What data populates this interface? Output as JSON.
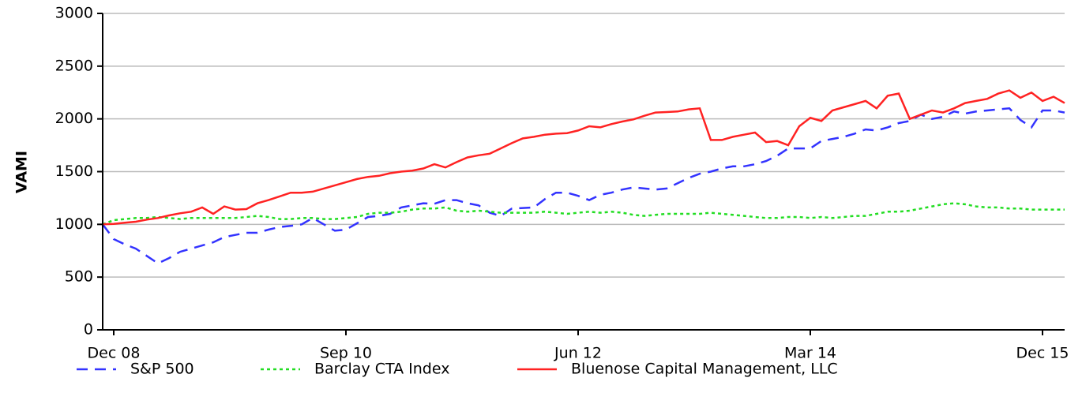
{
  "chart_data": {
    "type": "line",
    "y_label": "VAMI",
    "categories": [
      null,
      "Dec 08",
      null,
      null,
      null,
      null,
      null,
      null,
      null,
      null,
      null,
      null,
      null,
      null,
      null,
      null,
      null,
      null,
      null,
      null,
      null,
      null,
      "Sep 10",
      null,
      null,
      null,
      null,
      null,
      null,
      null,
      null,
      null,
      null,
      null,
      null,
      null,
      null,
      null,
      null,
      null,
      null,
      null,
      null,
      "Jun 12",
      null,
      null,
      null,
      null,
      null,
      null,
      null,
      null,
      null,
      null,
      null,
      null,
      null,
      null,
      null,
      null,
      null,
      null,
      null,
      null,
      "Mar 14",
      null,
      null,
      null,
      null,
      null,
      null,
      null,
      null,
      null,
      null,
      null,
      null,
      null,
      null,
      null,
      null,
      null,
      null,
      null,
      null,
      "Dec 15",
      null,
      null
    ],
    "ylim": [
      0,
      3000
    ],
    "yticks": [
      0,
      500,
      1000,
      1500,
      2000,
      2500,
      3000
    ],
    "grid": true,
    "legend": "bottom",
    "series": [
      {
        "name": "S&P 500",
        "color": "#3333ff",
        "dash": "dashed",
        "values": [
          1000,
          860,
          810,
          770,
          700,
          630,
          680,
          740,
          770,
          800,
          830,
          880,
          900,
          920,
          920,
          950,
          975,
          985,
          1000,
          1060,
          1000,
          940,
          950,
          1010,
          1070,
          1080,
          1100,
          1160,
          1180,
          1200,
          1195,
          1230,
          1230,
          1200,
          1180,
          1110,
          1080,
          1150,
          1155,
          1160,
          1240,
          1300,
          1300,
          1270,
          1230,
          1280,
          1300,
          1330,
          1350,
          1340,
          1330,
          1340,
          1390,
          1440,
          1480,
          1500,
          1530,
          1550,
          1550,
          1570,
          1600,
          1650,
          1720,
          1720,
          1720,
          1790,
          1810,
          1830,
          1860,
          1900,
          1890,
          1920,
          1960,
          1980,
          2040,
          2000,
          2020,
          2070,
          2050,
          2070,
          2080,
          2090,
          2100,
          1990,
          1920,
          2080,
          2080,
          2060
        ]
      },
      {
        "name": "Barclay CTA Index",
        "color": "#22dd22",
        "dash": "dotted",
        "values": [
          1000,
          1040,
          1050,
          1060,
          1060,
          1070,
          1060,
          1050,
          1060,
          1060,
          1060,
          1060,
          1060,
          1070,
          1080,
          1070,
          1050,
          1050,
          1060,
          1060,
          1050,
          1050,
          1060,
          1070,
          1100,
          1110,
          1110,
          1120,
          1140,
          1150,
          1150,
          1160,
          1130,
          1120,
          1130,
          1120,
          1110,
          1110,
          1110,
          1110,
          1120,
          1110,
          1100,
          1110,
          1120,
          1110,
          1120,
          1110,
          1090,
          1080,
          1090,
          1100,
          1100,
          1100,
          1100,
          1110,
          1100,
          1090,
          1080,
          1070,
          1060,
          1060,
          1070,
          1070,
          1060,
          1070,
          1060,
          1070,
          1080,
          1080,
          1100,
          1120,
          1120,
          1130,
          1150,
          1170,
          1190,
          1200,
          1190,
          1170,
          1160,
          1160,
          1150,
          1150,
          1140,
          1140,
          1140,
          1140
        ]
      },
      {
        "name": "Bluenose Capital Management, LLC",
        "color": "#ff2222",
        "dash": "solid",
        "values": [
          1000,
          1005,
          1015,
          1025,
          1045,
          1060,
          1085,
          1105,
          1120,
          1160,
          1100,
          1170,
          1140,
          1145,
          1200,
          1230,
          1265,
          1300,
          1300,
          1310,
          1340,
          1370,
          1400,
          1430,
          1450,
          1460,
          1485,
          1500,
          1510,
          1530,
          1570,
          1540,
          1590,
          1635,
          1655,
          1670,
          1720,
          1770,
          1815,
          1830,
          1850,
          1860,
          1865,
          1890,
          1930,
          1920,
          1950,
          1975,
          1995,
          2030,
          2060,
          2065,
          2070,
          2090,
          2100,
          1800,
          1800,
          1830,
          1850,
          1870,
          1780,
          1790,
          1750,
          1930,
          2010,
          1980,
          2080,
          2110,
          2140,
          2170,
          2100,
          2220,
          2240,
          2000,
          2040,
          2080,
          2060,
          2100,
          2150,
          2170,
          2190,
          2240,
          2270,
          2200,
          2250,
          2170,
          2210,
          2150
        ]
      }
    ]
  }
}
